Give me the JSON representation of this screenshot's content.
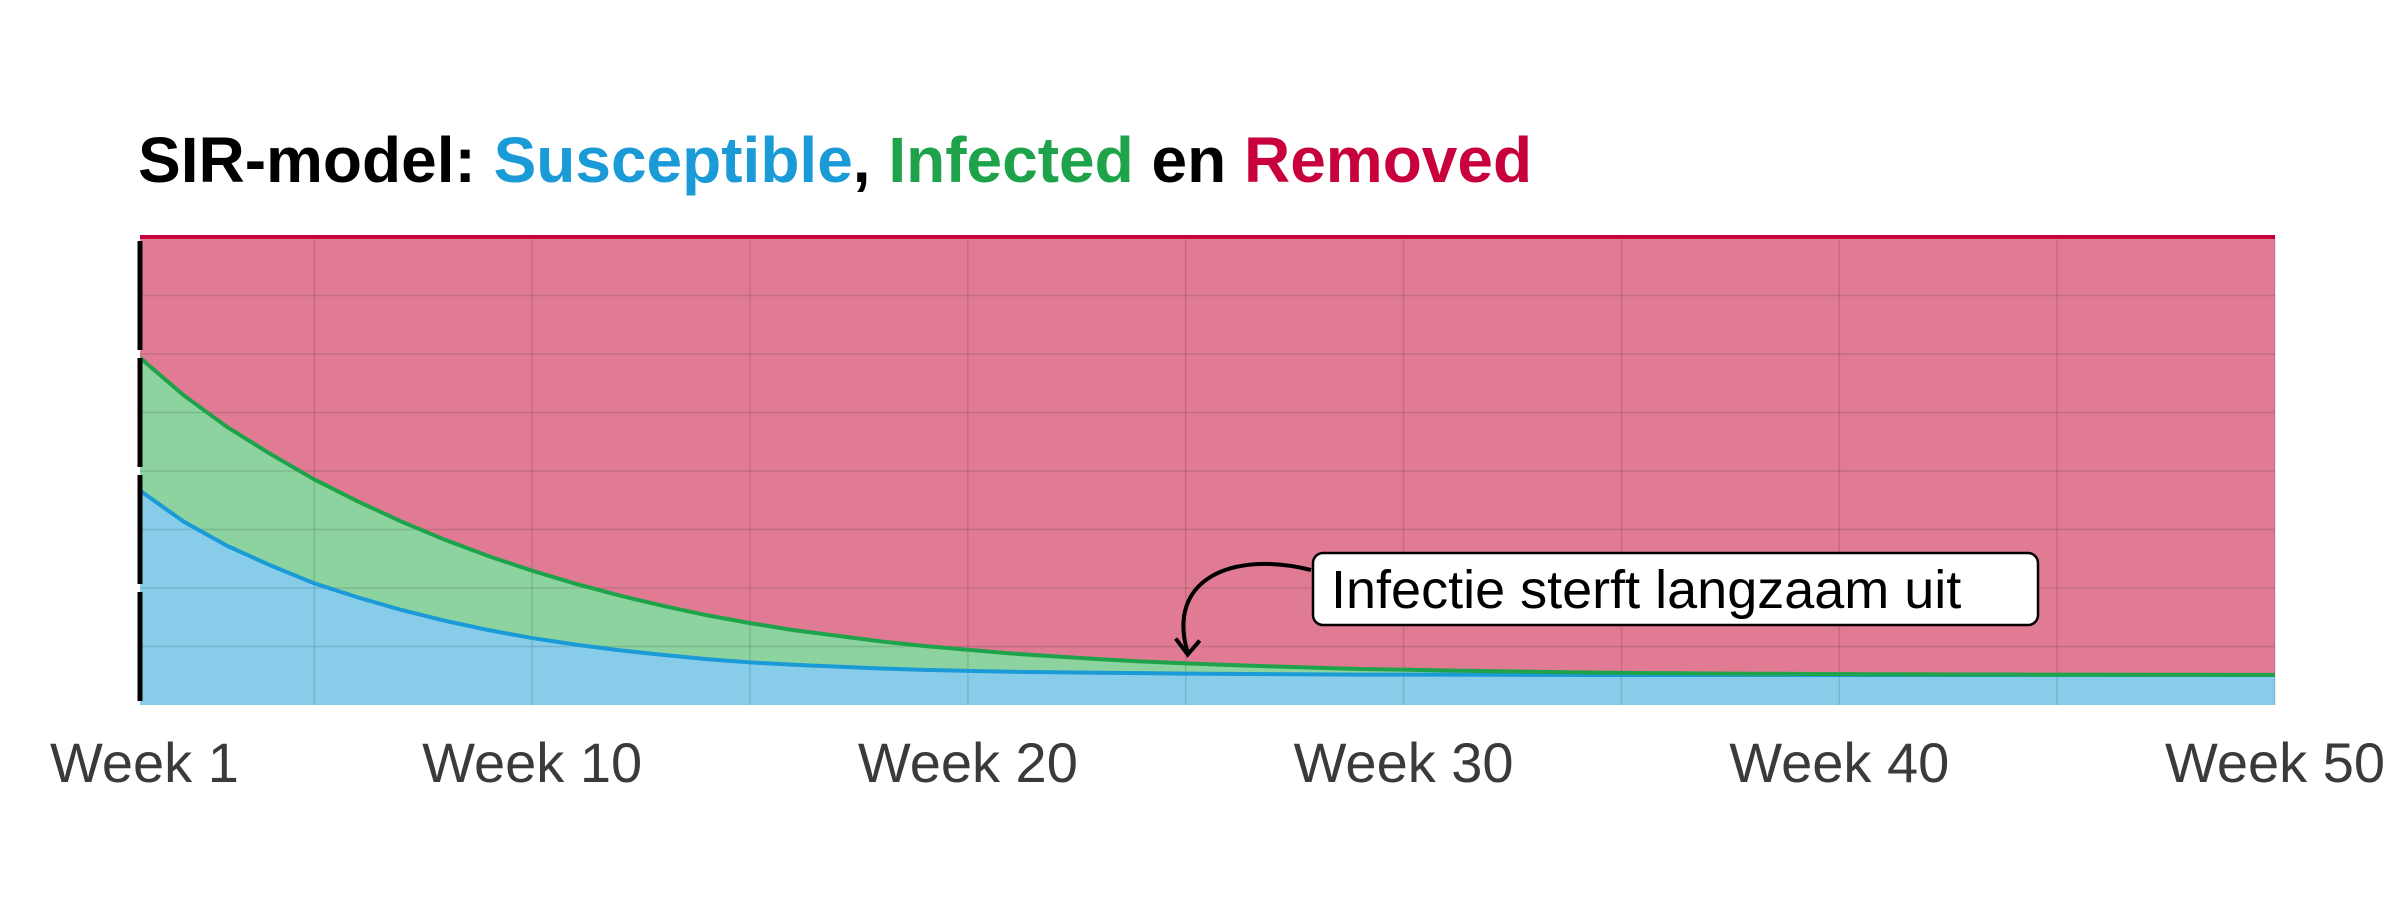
{
  "chart_data": {
    "type": "area",
    "stacked": true,
    "title_parts": [
      {
        "text": "SIR-model: ",
        "color": "#000000"
      },
      {
        "text": "Susceptible",
        "color": "#1a9ad6"
      },
      {
        "text": ", ",
        "color": "#000000"
      },
      {
        "text": "Infected",
        "color": "#1ea34a"
      },
      {
        "text": " en ",
        "color": "#000000"
      },
      {
        "text": "Removed",
        "color": "#c8003c"
      }
    ],
    "xlabel": "",
    "ylabel": "",
    "x_ticks": [
      {
        "value": 1,
        "label": "Week 1"
      },
      {
        "value": 10,
        "label": "Week 10"
      },
      {
        "value": 20,
        "label": "Week 20"
      },
      {
        "value": 30,
        "label": "Week 30"
      },
      {
        "value": 40,
        "label": "Week 40"
      },
      {
        "value": 50,
        "label": "Week 50"
      }
    ],
    "xlim": [
      1,
      50
    ],
    "ylim": [
      0,
      1
    ],
    "grid": true,
    "x": [
      1,
      2,
      3,
      4,
      5,
      6,
      7,
      8,
      9,
      10,
      11,
      12,
      13,
      14,
      15,
      16,
      17,
      18,
      19,
      20,
      21,
      22,
      23,
      24,
      25,
      26,
      27,
      28,
      29,
      30,
      31,
      32,
      33,
      34,
      35,
      36,
      37,
      38,
      39,
      40,
      41,
      42,
      43,
      44,
      45,
      46,
      47,
      48,
      49,
      50
    ],
    "series": [
      {
        "key": "susceptible",
        "color": "#1a9ad6",
        "fill": "#87cdea",
        "values": [
          0.458,
          0.392,
          0.34,
          0.298,
          0.26,
          0.23,
          0.203,
          0.18,
          0.16,
          0.143,
          0.129,
          0.117,
          0.107,
          0.098,
          0.091,
          0.086,
          0.082,
          0.078,
          0.075,
          0.073,
          0.071,
          0.07,
          0.069,
          0.068,
          0.067,
          0.0665,
          0.066,
          0.0655,
          0.065,
          0.065,
          0.0648,
          0.0646,
          0.0644,
          0.0642,
          0.064,
          0.064,
          0.064,
          0.064,
          0.064,
          0.064,
          0.064,
          0.064,
          0.064,
          0.064,
          0.064,
          0.064,
          0.064,
          0.064,
          0.064,
          0.064
        ]
      },
      {
        "key": "infected",
        "color": "#1ea34a",
        "fill": "#8dd3a0",
        "values": [
          0.284,
          0.27,
          0.254,
          0.238,
          0.222,
          0.205,
          0.189,
          0.173,
          0.158,
          0.144,
          0.13,
          0.117,
          0.105,
          0.094,
          0.084,
          0.074,
          0.066,
          0.058,
          0.051,
          0.045,
          0.039,
          0.034,
          0.029,
          0.025,
          0.022,
          0.019,
          0.0165,
          0.014,
          0.012,
          0.0105,
          0.009,
          0.0078,
          0.0066,
          0.0056,
          0.0047,
          0.004,
          0.0034,
          0.0029,
          0.0025,
          0.0021,
          0.0018,
          0.0015,
          0.0013,
          0.0011,
          0.0009,
          0.0008,
          0.0007,
          0.0006,
          0.0005,
          0.0004
        ]
      },
      {
        "key": "removed",
        "color": "#c8003c",
        "fill": "#e07b93",
        "values": [
          0.258,
          0.338,
          0.406,
          0.464,
          0.518,
          0.565,
          0.608,
          0.647,
          0.682,
          0.713,
          0.741,
          0.766,
          0.788,
          0.808,
          0.825,
          0.84,
          0.852,
          0.864,
          0.874,
          0.882,
          0.89,
          0.896,
          0.902,
          0.907,
          0.911,
          0.9145,
          0.9175,
          0.9205,
          0.923,
          0.9245,
          0.9262,
          0.9276,
          0.929,
          0.9302,
          0.9313,
          0.932,
          0.9326,
          0.9331,
          0.9335,
          0.9339,
          0.9342,
          0.9345,
          0.9347,
          0.9349,
          0.9351,
          0.9352,
          0.9353,
          0.9354,
          0.9355,
          0.9356
        ]
      }
    ],
    "annotation": {
      "text": "Infectie sterft langzaam uit",
      "x": 25,
      "y": 0.095
    }
  }
}
